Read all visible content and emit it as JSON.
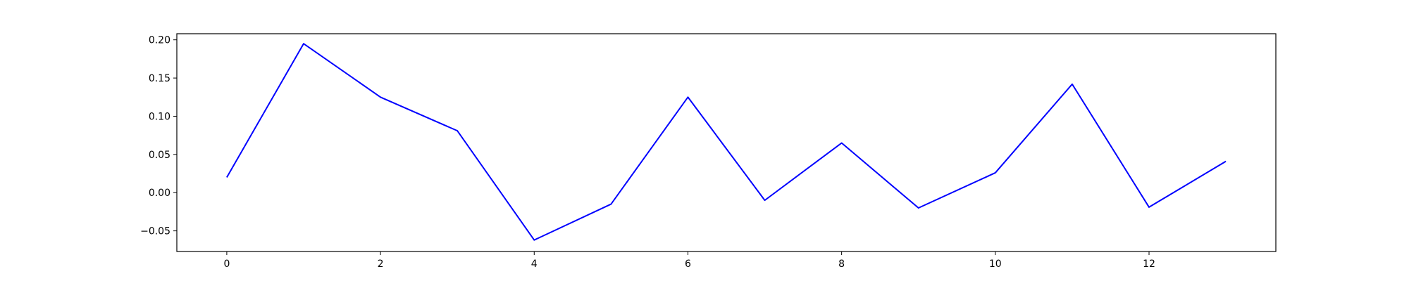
{
  "chart_data": {
    "type": "line",
    "title": "",
    "xlabel": "",
    "ylabel": "",
    "xlim": [
      -0.65,
      13.65
    ],
    "ylim": [
      -0.077,
      0.208
    ],
    "grid": false,
    "legend": "none",
    "x_ticks": [
      0,
      2,
      4,
      6,
      8,
      10,
      12
    ],
    "x_tick_labels": [
      "0",
      "2",
      "4",
      "6",
      "8",
      "10",
      "12"
    ],
    "y_ticks": [
      -0.05,
      0.0,
      0.05,
      0.1,
      0.15,
      0.2
    ],
    "y_tick_labels": [
      "−0.05",
      "0.00",
      "0.05",
      "0.10",
      "0.15",
      "0.20"
    ],
    "series": [
      {
        "color": "#0000ff",
        "x": [
          0,
          1,
          2,
          3,
          4,
          5,
          6,
          7,
          8,
          9,
          10,
          11,
          12,
          13
        ],
        "values": [
          0.02,
          0.195,
          0.125,
          0.081,
          -0.062,
          -0.015,
          0.125,
          -0.01,
          0.065,
          -0.02,
          0.026,
          0.142,
          -0.019,
          0.041
        ]
      }
    ]
  }
}
